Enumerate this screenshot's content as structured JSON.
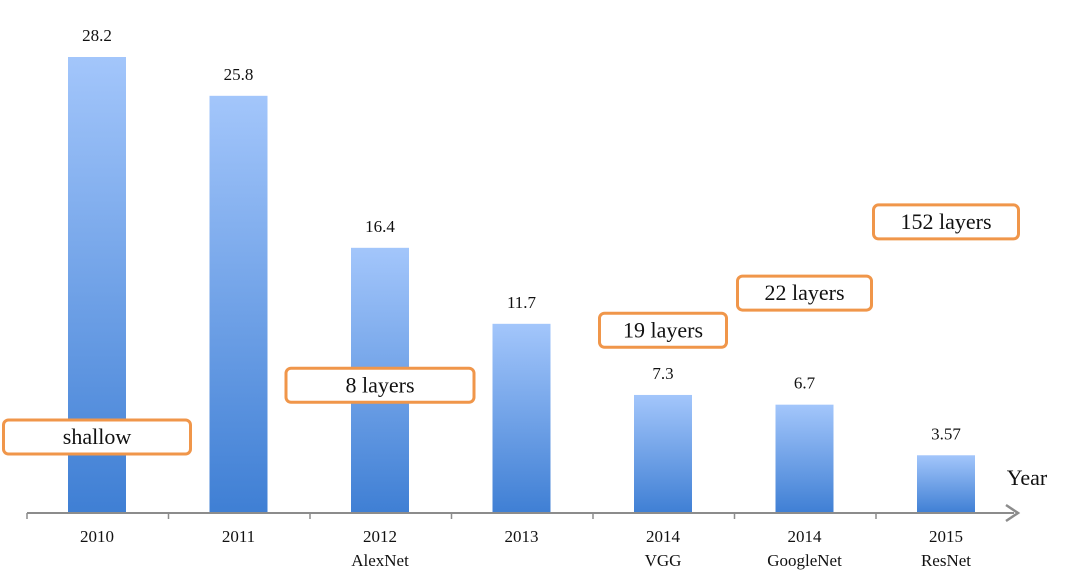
{
  "chart_data": {
    "type": "bar",
    "categories": [
      {
        "year": "2010",
        "model": ""
      },
      {
        "year": "2011",
        "model": ""
      },
      {
        "year": "2012",
        "model": "AlexNet"
      },
      {
        "year": "2013",
        "model": ""
      },
      {
        "year": "2014",
        "model": "VGG"
      },
      {
        "year": "2014",
        "model": "GoogleNet"
      },
      {
        "year": "2015",
        "model": "ResNet"
      }
    ],
    "values": [
      28.2,
      25.8,
      16.4,
      11.7,
      7.3,
      6.7,
      3.57
    ],
    "value_labels": [
      "28.2",
      "25.8",
      "16.4",
      "11.7",
      "7.3",
      "6.7",
      "3.57"
    ],
    "xlabel": "Year",
    "ylabel": "",
    "ylim": [
      0,
      28.2
    ],
    "grid": false,
    "legend": "none",
    "annotations": [
      {
        "text": "shallow",
        "category_index": 0,
        "level": 4.7
      },
      {
        "text": "8 layers",
        "category_index": 2,
        "level": 7.9
      },
      {
        "text": "19 layers",
        "category_index": 4,
        "level": 11.3
      },
      {
        "text": "22 layers",
        "category_index": 5,
        "level": 13.6
      },
      {
        "text": "152 layers",
        "category_index": 6,
        "level": 18.0
      }
    ],
    "colors": {
      "bar_top": "#a3c6fb",
      "bar_bottom": "#3f7fd4",
      "axis": "#8c8c8c",
      "annotation_border": "#f0964a",
      "annotation_fill": "#ffffff"
    }
  }
}
